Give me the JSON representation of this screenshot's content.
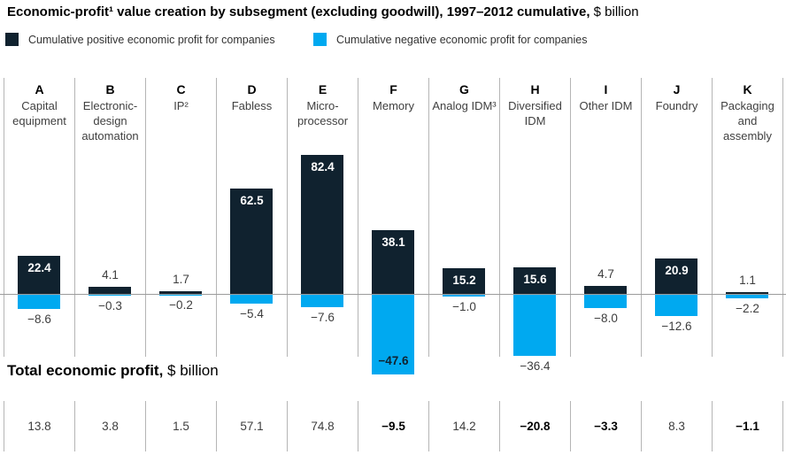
{
  "title": {
    "main": "Economic-profit¹ value creation by subsegment (excluding goodwill), 1997–2012 cumulative,",
    "unit": " $ billion"
  },
  "legend": [
    {
      "label": "Cumulative positive economic profit for companies",
      "color": "#10222f"
    },
    {
      "label": "Cumulative negative economic profit for companies",
      "color": "#00a9f0"
    }
  ],
  "totals_heading": {
    "main": "Total economic profit,",
    "unit": " $ billion"
  },
  "colors": {
    "positive_bar": "#10222f",
    "negative_bar": "#00a9f0",
    "divider": "#b5b5b5",
    "zero_line": "#9b9b9b"
  },
  "chart_data": {
    "type": "bar",
    "title": "Economic-profit¹ value creation by subsegment (excluding goodwill), 1997–2012 cumulative, $ billion",
    "categories": [
      {
        "letter": "A",
        "name": "Capital equipment"
      },
      {
        "letter": "B",
        "name": "Electronic-design automation"
      },
      {
        "letter": "C",
        "name": "IP²"
      },
      {
        "letter": "D",
        "name": "Fabless"
      },
      {
        "letter": "E",
        "name": "Micro-processor"
      },
      {
        "letter": "F",
        "name": "Memory"
      },
      {
        "letter": "G",
        "name": "Analog IDM³"
      },
      {
        "letter": "H",
        "name": "Diversified IDM"
      },
      {
        "letter": "I",
        "name": "Other IDM"
      },
      {
        "letter": "J",
        "name": "Foundry"
      },
      {
        "letter": "K",
        "name": "Packaging and assembly"
      }
    ],
    "series": [
      {
        "name": "Cumulative positive economic profit for companies",
        "color": "#10222f",
        "values": [
          22.4,
          4.1,
          1.7,
          62.5,
          82.4,
          38.1,
          15.2,
          15.6,
          4.7,
          20.9,
          1.1
        ]
      },
      {
        "name": "Cumulative negative economic profit for companies",
        "color": "#00a9f0",
        "values": [
          -8.6,
          -0.3,
          -0.2,
          -5.4,
          -7.6,
          -47.6,
          -1.0,
          -36.4,
          -8.0,
          -12.6,
          -2.2
        ]
      }
    ],
    "totals_label": "Total economic profit, $ billion",
    "totals": [
      13.8,
      3.8,
      1.5,
      57.1,
      74.8,
      -9.5,
      14.2,
      -20.8,
      -3.3,
      8.3,
      -1.1
    ],
    "ylim": [
      -50,
      90
    ],
    "grid": "column-dividers",
    "legend_position": "top"
  }
}
